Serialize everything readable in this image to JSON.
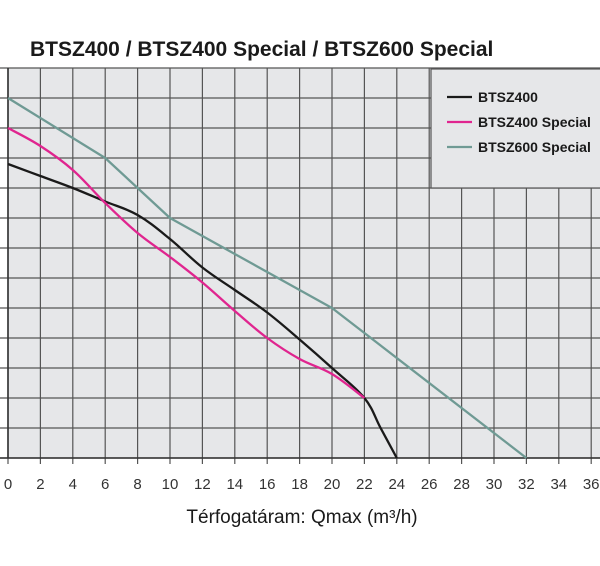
{
  "chart_data": {
    "type": "line",
    "title": "BTSZ400 / BTSZ400 Special / BTSZ600 Special",
    "xlabel": "Térfogatáram: Qmax (m³/h)",
    "ylabel": "",
    "xlim": [
      0,
      36
    ],
    "ylim": [
      0,
      13
    ],
    "x_ticks": [
      0,
      2,
      4,
      6,
      8,
      10,
      12,
      14,
      16,
      18,
      20,
      22,
      24,
      26,
      28,
      30,
      32,
      34,
      36
    ],
    "y_unit_note": "y in grid units (axis labels not visible)",
    "grid": true,
    "legend_position": "top-right",
    "series": [
      {
        "name": "BTSZ400",
        "color": "#1a1a1a",
        "x": [
          0,
          2,
          4,
          6,
          8,
          10,
          12,
          14,
          16,
          18,
          20,
          22,
          23,
          24
        ],
        "y": [
          9.8,
          9.4,
          9.0,
          8.55,
          8.1,
          7.3,
          6.35,
          5.6,
          4.85,
          3.95,
          3.0,
          2.0,
          1.0,
          0
        ]
      },
      {
        "name": "BTSZ400 Special",
        "color": "#e0258f",
        "x": [
          0,
          2,
          4,
          6,
          8,
          10,
          12,
          14,
          16,
          18,
          20,
          22
        ],
        "y": [
          11.0,
          10.4,
          9.6,
          8.5,
          7.5,
          6.7,
          5.85,
          4.9,
          4.0,
          3.3,
          2.8,
          2.0
        ]
      },
      {
        "name": "BTSZ600 Special",
        "color": "#6f9a94",
        "x": [
          0,
          6,
          10,
          20,
          32
        ],
        "y": [
          12.0,
          10.0,
          8.0,
          5.0,
          0
        ]
      }
    ]
  }
}
